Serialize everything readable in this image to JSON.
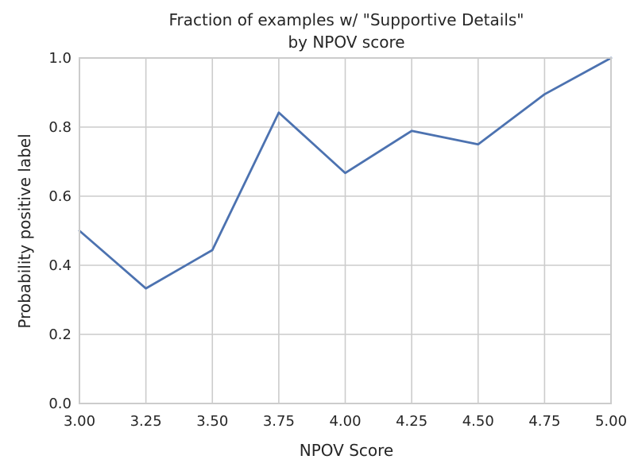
{
  "chart_data": {
    "type": "line",
    "title": "Fraction of examples  w/ \"Supportive Details\"",
    "subtitle": "by NPOV score",
    "xlabel": "NPOV Score",
    "ylabel": "Probability positive label",
    "xlim": [
      3.0,
      5.0
    ],
    "ylim": [
      0.0,
      1.0
    ],
    "xticks": [
      "3.00",
      "3.25",
      "3.50",
      "3.75",
      "4.00",
      "4.25",
      "4.50",
      "4.75",
      "5.00"
    ],
    "yticks": [
      "0.0",
      "0.2",
      "0.4",
      "0.6",
      "0.8",
      "1.0"
    ],
    "grid": true,
    "series": [
      {
        "color": "#4c72b0",
        "x": [
          3.0,
          3.25,
          3.5,
          3.75,
          4.0,
          4.25,
          4.5,
          4.75,
          5.0
        ],
        "y": [
          0.5,
          0.333,
          0.444,
          0.842,
          0.667,
          0.789,
          0.75,
          0.895,
          1.0
        ]
      }
    ]
  }
}
